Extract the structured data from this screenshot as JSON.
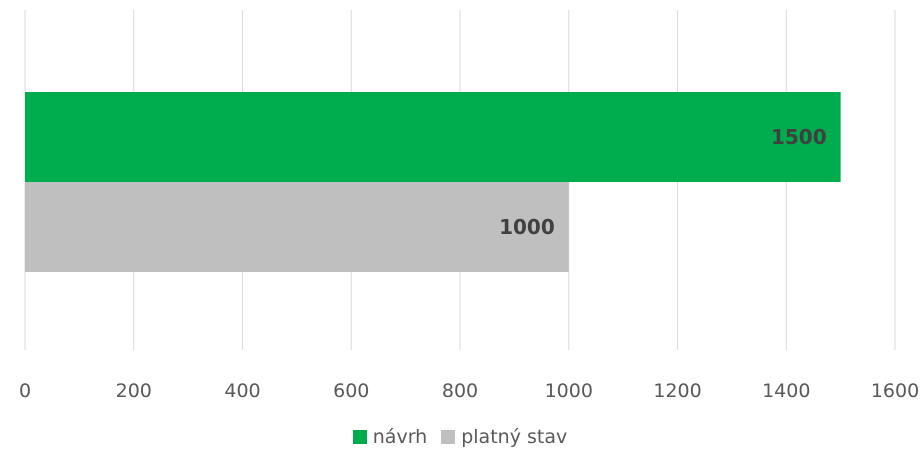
{
  "chart_data": {
    "type": "bar",
    "orientation": "horizontal",
    "series": [
      {
        "name": "návrh",
        "value": 1500,
        "label": "1500",
        "color": "#00AD4E"
      },
      {
        "name": "platný stav",
        "value": 1000,
        "label": "1000",
        "color": "#BFBFBF"
      }
    ],
    "xlim": [
      0,
      1600
    ],
    "x_ticks": [
      "0",
      "200",
      "400",
      "600",
      "800",
      "1000",
      "1200",
      "1400",
      "1600"
    ],
    "grid": true,
    "legend_position": "bottom"
  }
}
